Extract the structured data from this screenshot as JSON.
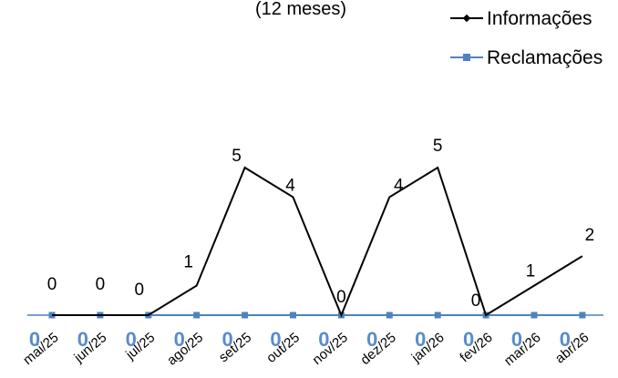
{
  "chart_data": {
    "type": "line",
    "subtitle": "(12 meses)",
    "categories": [
      "mai/25",
      "jun/25",
      "jul/25",
      "ago/25",
      "set/25",
      "out/25",
      "nov/25",
      "dez/25",
      "jan/26",
      "fev/26",
      "mar/26",
      "abr/26"
    ],
    "series": [
      {
        "name": "Informações",
        "values": [
          0,
          0,
          0,
          1,
          5,
          4,
          0,
          4,
          5,
          0,
          1,
          2
        ],
        "color": "#000000",
        "marker": "diamond"
      },
      {
        "name": "Reclamações",
        "values": [
          0,
          0,
          0,
          0,
          0,
          0,
          0,
          0,
          0,
          0,
          0,
          0
        ],
        "color": "#4f81bd",
        "marker": "square"
      }
    ],
    "ylim": [
      0,
      5
    ],
    "grid": false,
    "legend_position": "top-right"
  }
}
